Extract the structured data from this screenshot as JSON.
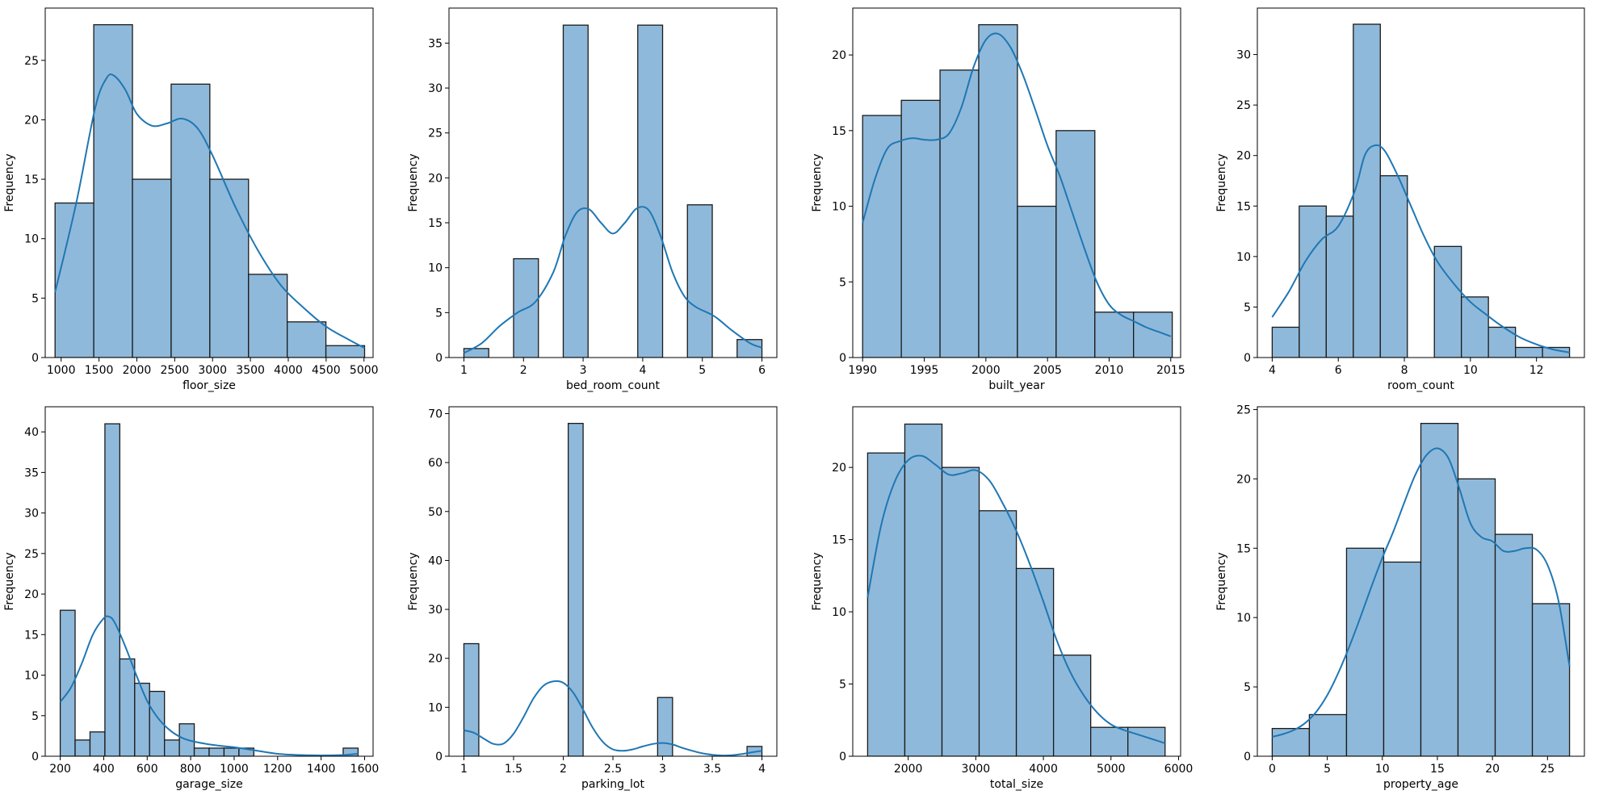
{
  "figure": {
    "background": "#ffffff"
  },
  "style": {
    "bar_fill": "#8fb9da",
    "bar_edge": "#1a1a1a",
    "kde_color": "#1f77b4"
  },
  "chart_data": [
    {
      "type": "bar",
      "subtype": "histogram",
      "kde": true,
      "xlabel": "floor_size",
      "ylabel": "Frequency",
      "xlim": [
        790,
        5120
      ],
      "ylim": [
        0,
        29.4
      ],
      "xticks": [
        1000,
        1500,
        2000,
        2500,
        3000,
        3500,
        4000,
        4500,
        5000
      ],
      "yticks": [
        0,
        5,
        10,
        15,
        20,
        25
      ],
      "bin_edges": [
        920,
        1431,
        1942,
        2453,
        2964,
        3475,
        3986,
        4497,
        5008
      ],
      "values": [
        13,
        28,
        15,
        23,
        15,
        7,
        3,
        1
      ],
      "kde_x": [
        920,
        1200,
        1450,
        1600,
        1700,
        1850,
        2000,
        2200,
        2400,
        2600,
        2800,
        3000,
        3300,
        3600,
        3900,
        4200,
        4500,
        4800,
        5008
      ],
      "kde_y": [
        5.5,
        13,
        21,
        23.5,
        23.7,
        22.5,
        20.5,
        19.5,
        19.7,
        20.1,
        19.3,
        17,
        12.7,
        9,
        6.1,
        4.2,
        2.6,
        1.5,
        0.8
      ]
    },
    {
      "type": "bar",
      "subtype": "histogram",
      "kde": true,
      "xlabel": "bed_room_count",
      "ylabel": "Frequency",
      "xlim": [
        0.75,
        6.25
      ],
      "ylim": [
        0,
        38.9
      ],
      "xticks": [
        1,
        2,
        3,
        4,
        5,
        6
      ],
      "yticks": [
        0,
        5,
        10,
        15,
        20,
        25,
        30,
        35
      ],
      "bin_edges": [
        1.0,
        1.4167,
        1.8333,
        2.25,
        2.6667,
        3.0833,
        3.5,
        3.9167,
        4.3333,
        4.75,
        5.1667,
        5.5833,
        6.0
      ],
      "values": [
        1,
        0,
        11,
        0,
        37,
        0,
        0,
        37,
        0,
        17,
        0,
        2
      ],
      "kde_x": [
        1.0,
        1.3,
        1.6,
        1.9,
        2.2,
        2.5,
        2.7,
        2.9,
        3.1,
        3.3,
        3.5,
        3.7,
        3.9,
        4.1,
        4.3,
        4.5,
        4.7,
        4.9,
        5.2,
        5.5,
        5.8,
        6.0
      ],
      "kde_y": [
        0.5,
        1.6,
        3.5,
        5.0,
        6.2,
        9.5,
        13.5,
        16.2,
        16.5,
        15.0,
        13.8,
        15.0,
        16.6,
        16.4,
        13.5,
        9.5,
        6.8,
        5.6,
        4.6,
        3.0,
        1.6,
        1.1
      ]
    },
    {
      "type": "bar",
      "subtype": "histogram",
      "kde": true,
      "xlabel": "built_year",
      "ylabel": "Frequency",
      "xlim": [
        1989.2,
        2015.8
      ],
      "ylim": [
        0,
        23.1
      ],
      "xticks": [
        1990,
        1995,
        2000,
        2005,
        2010,
        2015
      ],
      "yticks": [
        0,
        5,
        10,
        15,
        20
      ],
      "bin_edges": [
        1990,
        1993.14,
        1996.28,
        1999.42,
        2002.56,
        2005.7,
        2008.84,
        2011.98,
        2015.12
      ],
      "values": [
        16,
        17,
        19,
        22,
        10,
        15,
        3,
        3
      ],
      "kde_x": [
        1990,
        1991,
        1992,
        1993,
        1994,
        1995,
        1996,
        1997,
        1998,
        1999,
        2000,
        2001,
        2002,
        2003,
        2004,
        2005,
        2006,
        2007,
        2008,
        2009,
        2010,
        2011,
        2012,
        2013,
        2014,
        2015
      ],
      "kde_y": [
        8.9,
        11.8,
        13.8,
        14.3,
        14.5,
        14.4,
        14.4,
        14.8,
        16.5,
        19.2,
        21.0,
        21.4,
        20.5,
        18.7,
        16.4,
        14.0,
        12.0,
        9.6,
        7.2,
        5.0,
        3.5,
        2.8,
        2.4,
        2.0,
        1.7,
        1.4
      ]
    },
    {
      "type": "bar",
      "subtype": "histogram",
      "kde": true,
      "xlabel": "room_count",
      "ylabel": "Frequency",
      "xlim": [
        3.55,
        13.45
      ],
      "ylim": [
        0,
        34.6
      ],
      "xticks": [
        4,
        6,
        8,
        10,
        12
      ],
      "yticks": [
        0,
        5,
        10,
        15,
        20,
        25,
        30
      ],
      "bin_edges": [
        4.0,
        4.818,
        5.636,
        6.455,
        7.273,
        8.091,
        8.909,
        9.727,
        10.545,
        11.364,
        12.182,
        13.0
      ],
      "values": [
        3,
        15,
        14,
        33,
        18,
        0,
        11,
        6,
        3,
        1,
        1
      ],
      "kde_x": [
        4.0,
        4.5,
        5.0,
        5.5,
        6.0,
        6.5,
        6.8,
        7.1,
        7.4,
        7.8,
        8.2,
        8.6,
        9.0,
        9.5,
        10.0,
        10.5,
        11.0,
        11.5,
        12.0,
        12.5,
        13.0
      ],
      "kde_y": [
        4.0,
        6.5,
        9.5,
        11.7,
        13.0,
        16.5,
        20.0,
        21.0,
        20.5,
        18.0,
        15.0,
        12.0,
        9.5,
        7.3,
        5.5,
        4.2,
        3.0,
        2.0,
        1.3,
        0.8,
        0.5
      ]
    },
    {
      "type": "bar",
      "subtype": "histogram",
      "kde": true,
      "xlabel": "garage_size",
      "ylabel": "Frequency",
      "xlim": [
        131,
        1639
      ],
      "ylim": [
        0,
        43.1
      ],
      "xticks": [
        200,
        400,
        600,
        800,
        1000,
        1200,
        1400,
        1600
      ],
      "yticks": [
        0,
        5,
        10,
        15,
        20,
        25,
        30,
        35,
        40
      ],
      "bin_edges": [
        200,
        268.5,
        337,
        405.5,
        474,
        542.5,
        611,
        679.5,
        748,
        816.5,
        885,
        953.5,
        1022,
        1090.5,
        1159,
        1227.5,
        1296,
        1364.5,
        1433,
        1501.5,
        1570
      ],
      "values": [
        18,
        2,
        3,
        41,
        12,
        9,
        8,
        2,
        4,
        1,
        1,
        1,
        1,
        0,
        0,
        0,
        0,
        0,
        0,
        1
      ],
      "kde_x": [
        200,
        250,
        300,
        350,
        400,
        425,
        450,
        500,
        550,
        600,
        650,
        700,
        750,
        800,
        900,
        1000,
        1100,
        1200,
        1300,
        1400,
        1500,
        1570
      ],
      "kde_y": [
        6.7,
        8.5,
        11.5,
        15.0,
        17.0,
        17.2,
        16.5,
        13.5,
        10.0,
        6.8,
        4.7,
        3.3,
        2.4,
        1.9,
        1.4,
        1.1,
        0.7,
        0.3,
        0.15,
        0.1,
        0.15,
        0.3
      ]
    },
    {
      "type": "bar",
      "subtype": "histogram",
      "kde": true,
      "xlabel": "parking_lot",
      "ylabel": "Frequency",
      "xlim": [
        0.85,
        4.15
      ],
      "ylim": [
        0,
        71.4
      ],
      "xticks": [
        1.0,
        1.5,
        2.0,
        2.5,
        3.0,
        3.5,
        4.0
      ],
      "yticks": [
        0,
        10,
        20,
        30,
        40,
        50,
        60,
        70
      ],
      "bin_edges": [
        1.0,
        1.15,
        1.3,
        1.45,
        1.6,
        1.75,
        1.9,
        2.05,
        2.2,
        2.35,
        2.5,
        2.65,
        2.8,
        2.95,
        3.1,
        3.25,
        3.4,
        3.55,
        3.7,
        3.85,
        4.0
      ],
      "values": [
        23,
        0,
        0,
        0,
        0,
        0,
        0,
        68,
        0,
        0,
        0,
        0,
        0,
        12,
        0,
        0,
        0,
        0,
        0,
        2
      ],
      "kde_x": [
        1.0,
        1.1,
        1.2,
        1.3,
        1.4,
        1.5,
        1.6,
        1.7,
        1.8,
        1.9,
        2.0,
        2.1,
        2.2,
        2.3,
        2.4,
        2.5,
        2.6,
        2.7,
        2.8,
        2.9,
        3.0,
        3.1,
        3.2,
        3.3,
        3.4,
        3.5,
        3.6,
        3.7,
        3.8,
        3.9,
        4.0
      ],
      "kde_y": [
        5.3,
        4.8,
        3.6,
        2.5,
        2.6,
        4.6,
        8.0,
        11.8,
        14.4,
        15.3,
        15.0,
        13.0,
        9.5,
        5.7,
        2.9,
        1.4,
        1.1,
        1.4,
        2.0,
        2.5,
        2.7,
        2.4,
        1.7,
        1.1,
        0.6,
        0.3,
        0.15,
        0.2,
        0.45,
        0.8,
        1.1
      ]
    },
    {
      "type": "bar",
      "subtype": "histogram",
      "kde": true,
      "xlabel": "total_size",
      "ylabel": "Frequency",
      "xlim": [
        1180,
        6030
      ],
      "ylim": [
        0,
        24.2
      ],
      "xticks": [
        2000,
        3000,
        4000,
        5000,
        6000
      ],
      "yticks": [
        0,
        5,
        10,
        15,
        20
      ],
      "bin_edges": [
        1400,
        1950,
        2500,
        3050,
        3600,
        4150,
        4700,
        5250,
        5800
      ],
      "values": [
        21,
        23,
        20,
        17,
        13,
        7,
        2,
        2
      ],
      "kde_x": [
        1400,
        1600,
        1800,
        2000,
        2200,
        2400,
        2600,
        2800,
        3000,
        3200,
        3400,
        3600,
        3800,
        4000,
        4200,
        4400,
        4600,
        4800,
        5000,
        5200,
        5400,
        5600,
        5800
      ],
      "kde_y": [
        11.0,
        16.0,
        19.0,
        20.5,
        20.8,
        20.2,
        19.5,
        19.6,
        19.8,
        19.1,
        17.5,
        15.6,
        13.3,
        10.7,
        8.0,
        5.8,
        4.2,
        3.0,
        2.2,
        1.8,
        1.5,
        1.2,
        0.9
      ]
    },
    {
      "type": "bar",
      "subtype": "histogram",
      "kde": true,
      "xlabel": "property_age",
      "ylabel": "Frequency",
      "xlim": [
        -1.35,
        28.35
      ],
      "ylim": [
        0,
        25.2
      ],
      "xticks": [
        0,
        5,
        10,
        15,
        20,
        25
      ],
      "yticks": [
        0,
        5,
        10,
        15,
        20,
        25
      ],
      "bin_edges": [
        0,
        3.375,
        6.75,
        10.125,
        13.5,
        16.875,
        20.25,
        23.625,
        27.0
      ],
      "values": [
        2,
        3,
        15,
        14,
        24,
        20,
        16,
        11
      ],
      "kde_x": [
        0,
        1,
        2,
        3,
        4,
        5,
        6,
        7,
        8,
        9,
        10,
        11,
        12,
        13,
        14,
        15,
        16,
        17,
        18,
        19,
        20,
        21,
        22,
        23,
        24,
        25,
        26,
        27
      ],
      "kde_y": [
        1.4,
        1.6,
        1.9,
        2.4,
        3.2,
        4.4,
        6.0,
        7.9,
        10.0,
        12.2,
        14.3,
        16.2,
        18.3,
        20.3,
        21.7,
        22.2,
        21.5,
        19.3,
        16.8,
        15.8,
        15.5,
        14.8,
        14.8,
        15.0,
        14.9,
        13.8,
        11.2,
        6.5
      ]
    }
  ]
}
